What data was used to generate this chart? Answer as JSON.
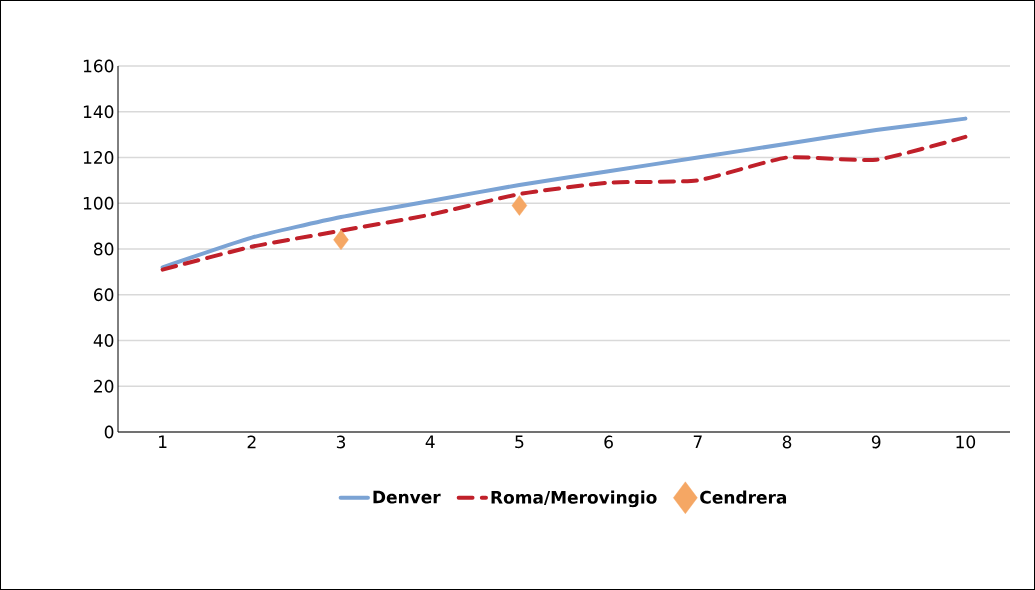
{
  "chart_data": {
    "type": "line",
    "categories": [
      "1",
      "2",
      "3",
      "4",
      "5",
      "6",
      "7",
      "8",
      "9",
      "10"
    ],
    "series": [
      {
        "name": "Denver",
        "color": "#7ba3d4",
        "values": [
          72,
          85,
          94,
          101,
          108,
          114,
          120,
          126,
          132,
          137
        ],
        "line_style": "solid",
        "marker": "none"
      },
      {
        "name": "Roma/Merovingio",
        "color": "#c0202a",
        "values": [
          71,
          81,
          88,
          95,
          104,
          109,
          110,
          120,
          119,
          129
        ],
        "line_style": "dashed",
        "marker": "none"
      },
      {
        "name": "Cendrera",
        "type": "scatter",
        "color": "#f5a764",
        "values": [
          null,
          null,
          84,
          null,
          99,
          null,
          null,
          null,
          null,
          null
        ],
        "marker": "diamond"
      }
    ],
    "ylim": [
      0,
      160
    ],
    "yticks": [
      0,
      20,
      40,
      60,
      80,
      100,
      120,
      140,
      160
    ],
    "grid": "y",
    "legend": "bottom"
  }
}
